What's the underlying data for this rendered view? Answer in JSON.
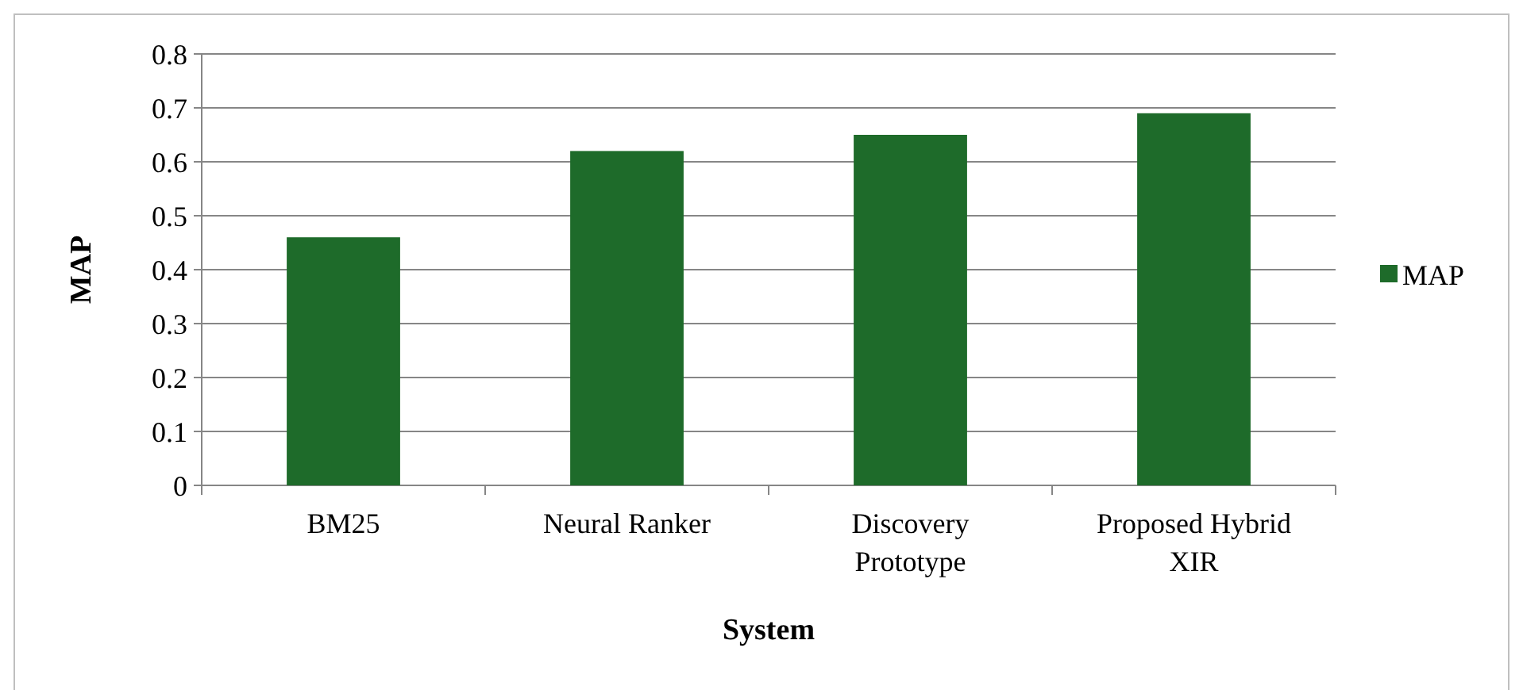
{
  "chart_data": {
    "type": "bar",
    "xlabel": "System",
    "ylabel": "MAP",
    "categories": [
      "BM25",
      "Neural Ranker",
      "Discovery Prototype",
      "Proposed Hybrid XIR"
    ],
    "series": [
      {
        "name": "MAP",
        "color": "#1e6b2a",
        "values": [
          0.46,
          0.62,
          0.65,
          0.69
        ]
      }
    ],
    "ylim": [
      0,
      0.8
    ],
    "yticks": [
      0,
      0.1,
      0.2,
      0.3,
      0.4,
      0.5,
      0.6,
      0.7,
      0.8
    ],
    "grid": "y",
    "legend": "right"
  }
}
